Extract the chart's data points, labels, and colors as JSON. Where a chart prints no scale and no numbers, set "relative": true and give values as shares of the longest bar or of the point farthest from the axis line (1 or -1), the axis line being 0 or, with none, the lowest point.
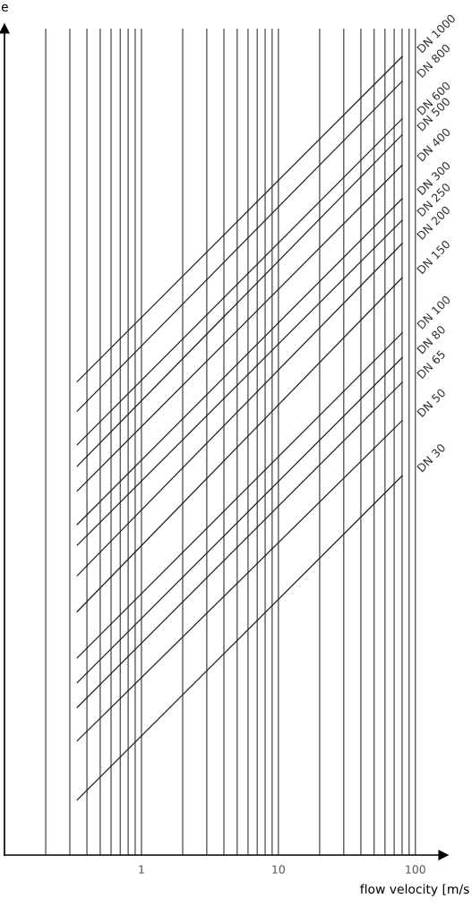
{
  "chart_data": {
    "type": "line",
    "relative": true,
    "log": "x",
    "grid": "x",
    "tick_labels": "x",
    "legend": false,
    "marker": "none",
    "line_style": "solid",
    "xlabel": "flow velocity [m/s",
    "ylabel": "e",
    "xlim": [
      0.1,
      160
    ],
    "xticks": [
      {
        "value": 0.2,
        "label": null
      },
      {
        "value": 0.3,
        "label": null
      },
      {
        "value": 0.4,
        "label": null
      },
      {
        "value": 0.5,
        "label": null
      },
      {
        "value": 0.6,
        "label": null
      },
      {
        "value": 0.7,
        "label": null
      },
      {
        "value": 0.8,
        "label": null
      },
      {
        "value": 0.9,
        "label": null
      },
      1,
      {
        "value": 2,
        "label": null
      },
      {
        "value": 3,
        "label": null
      },
      {
        "value": 4,
        "label": null
      },
      {
        "value": 5,
        "label": null
      },
      {
        "value": 6,
        "label": null
      },
      {
        "value": 7,
        "label": null
      },
      {
        "value": 8,
        "label": null
      },
      {
        "value": 9,
        "label": null
      },
      10,
      {
        "value": 20,
        "label": null
      },
      {
        "value": 30,
        "label": null
      },
      {
        "value": 40,
        "label": null
      },
      {
        "value": 50,
        "label": null
      },
      {
        "value": 60,
        "label": null
      },
      {
        "value": 70,
        "label": null
      },
      {
        "value": 80,
        "label": null
      },
      {
        "value": 90,
        "label": null
      },
      100
    ],
    "x": [
      0.34,
      80
    ],
    "series": [
      {
        "name": "DN 1000",
        "color": "#222222",
        "values": [
          0.593,
          1
        ]
      },
      {
        "name": "DN 800",
        "color": "#222222",
        "values": [
          0.556,
          0.969
        ]
      },
      {
        "name": "DN 600",
        "color": "#222222",
        "values": [
          0.514,
          0.922
        ]
      },
      {
        "name": "DN 500",
        "color": "#222222",
        "values": [
          0.487,
          0.902
        ]
      },
      {
        "name": "DN 400",
        "color": "#222222",
        "values": [
          0.456,
          0.864
        ]
      },
      {
        "name": "DN 300",
        "color": "#222222",
        "values": [
          0.414,
          0.822
        ]
      },
      {
        "name": "DN 250",
        "color": "#222222",
        "values": [
          0.388,
          0.795
        ]
      },
      {
        "name": "DN 200",
        "color": "#222222",
        "values": [
          0.35,
          0.766
        ]
      },
      {
        "name": "DN 150",
        "color": "#222222",
        "values": [
          0.305,
          0.723
        ]
      },
      {
        "name": "DN 100",
        "color": "#222222",
        "values": [
          0.247,
          0.654
        ]
      },
      {
        "name": "DN 80",
        "color": "#222222",
        "values": [
          0.216,
          0.623
        ]
      },
      {
        "name": "DN 65",
        "color": "#222222",
        "values": [
          0.185,
          0.592
        ]
      },
      {
        "name": "DN 50",
        "color": "#222222",
        "values": [
          0.143,
          0.544
        ]
      },
      {
        "name": "DN 30",
        "color": "#222222",
        "values": [
          0.069,
          0.475
        ]
      }
    ]
  }
}
